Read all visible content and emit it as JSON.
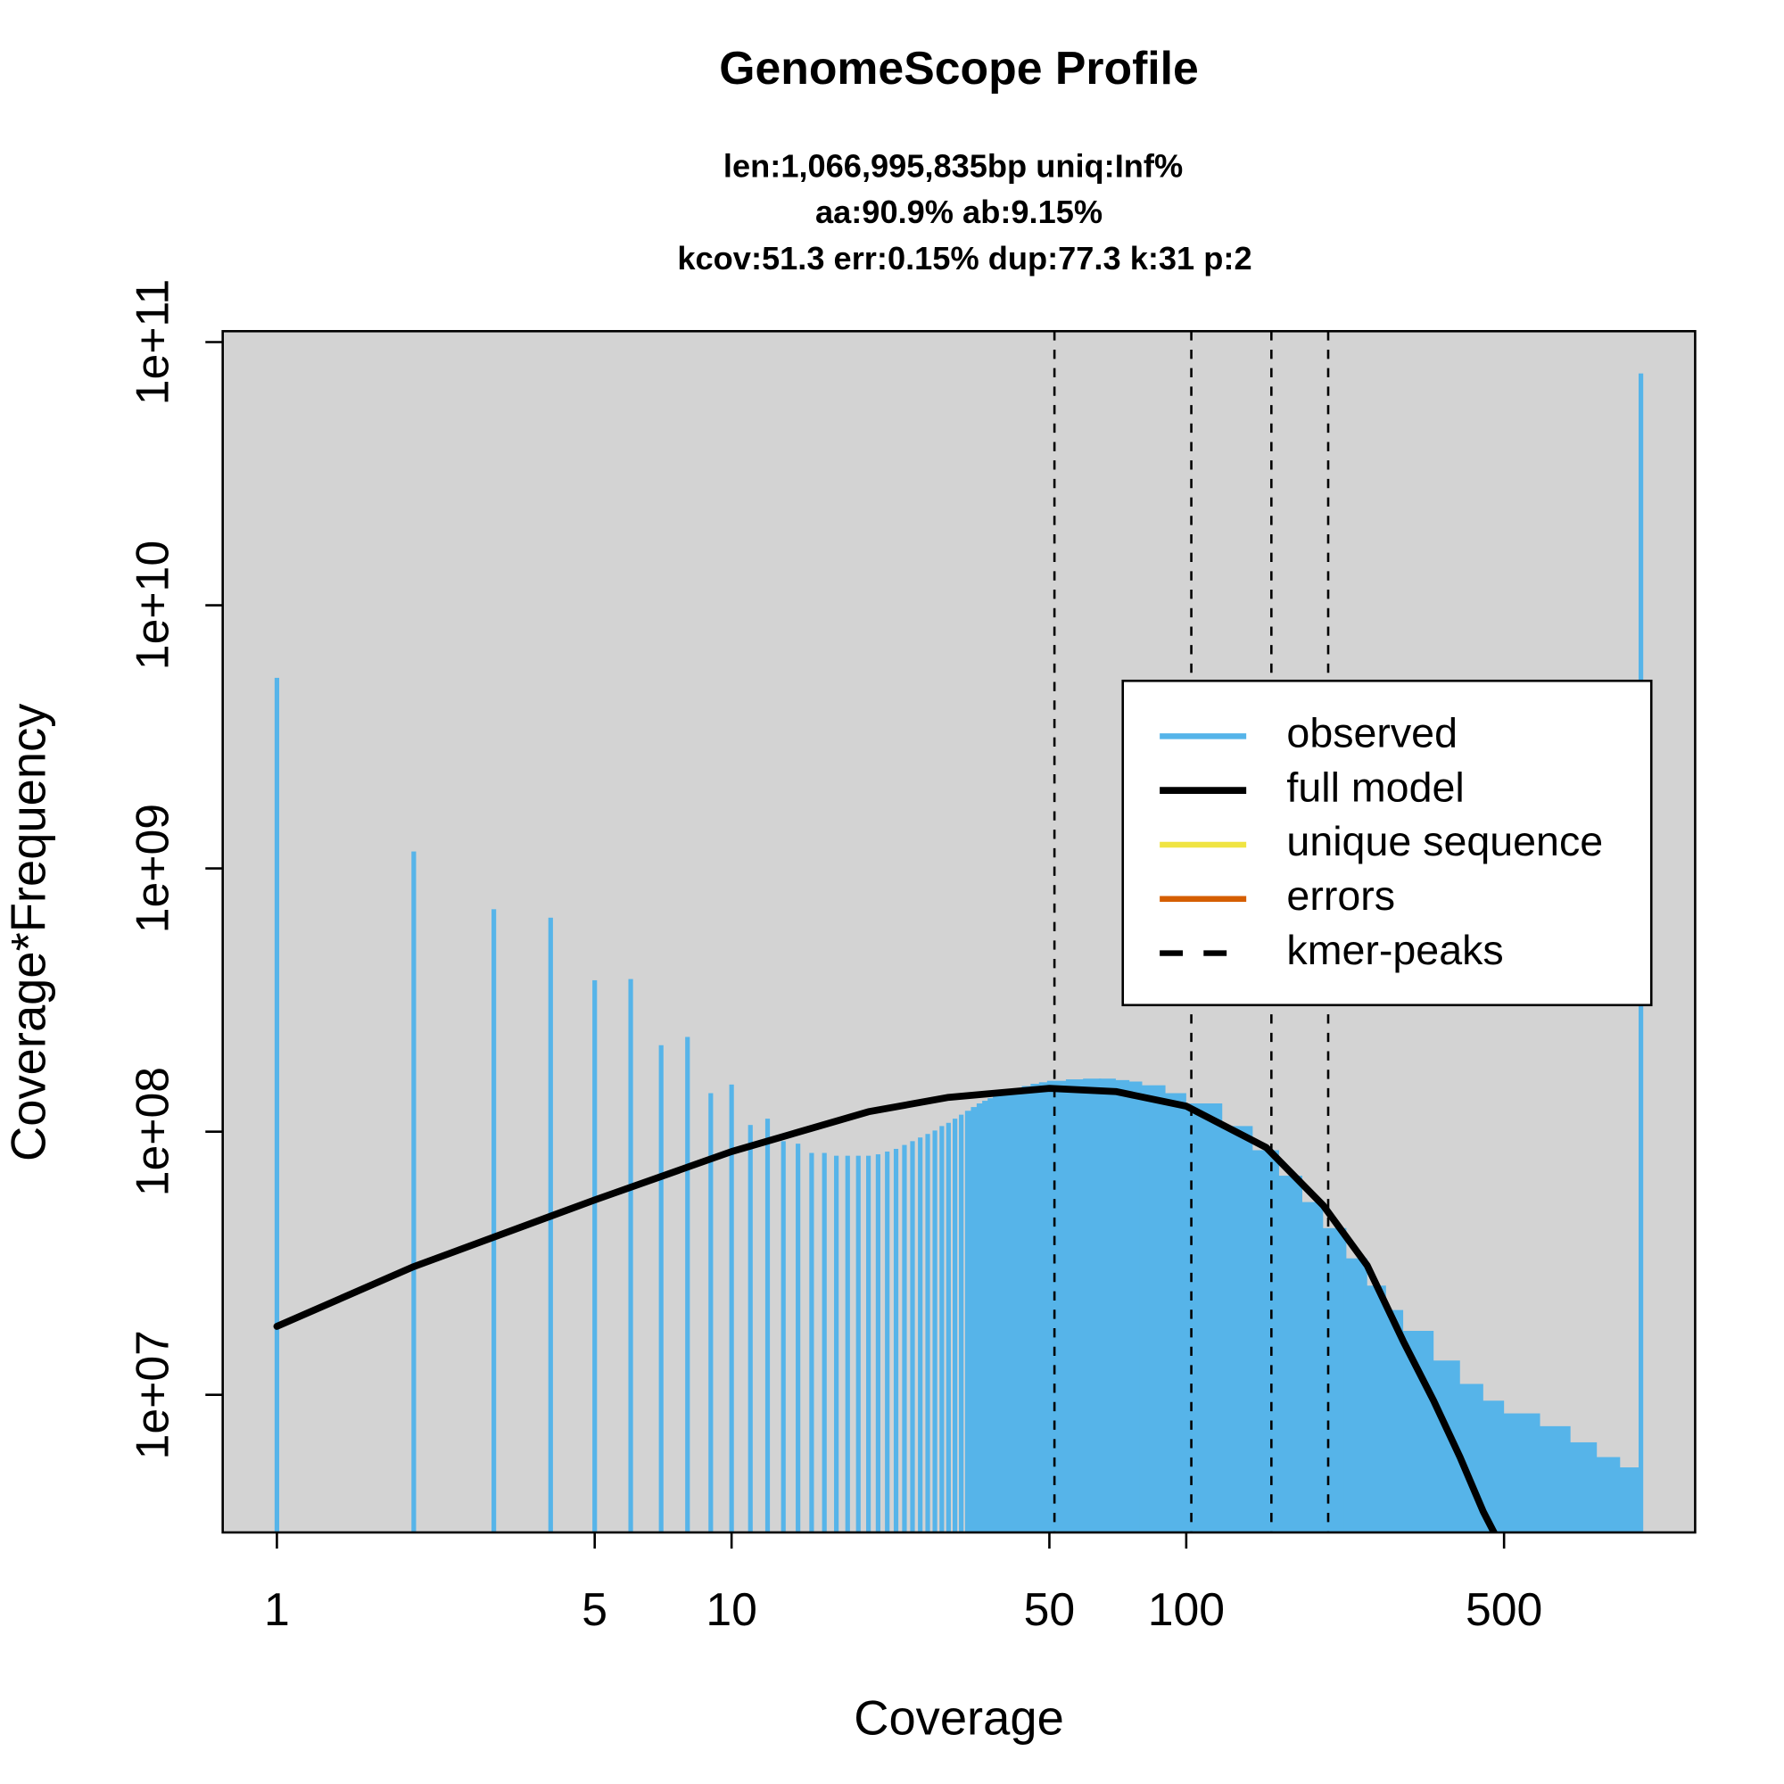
{
  "chart_data": {
    "type": "genomescope",
    "title": "GenomeScope Profile",
    "subtitle": [
      "len:1,066,995,835bp uniq:Inf%",
      "aa:90.9% ab:9.15%",
      "kcov:51.3 err:0.15%  dup:77.3  k:31 p:2"
    ],
    "xlabel": "Coverage",
    "ylabel": "Coverage*Frequency",
    "log_x": true,
    "log_y": true,
    "background": "#d3d3d3",
    "legend": "right",
    "xlim": [
      0.76,
      1316
    ],
    "ylim": [
      3000000,
      110000000000
    ],
    "xticks": [
      1,
      5,
      10,
      50,
      100,
      500
    ],
    "yticks": [
      {
        "value": 10000000,
        "label": "1e+07"
      },
      {
        "value": 100000000,
        "label": "1e+08"
      },
      {
        "value": 1000000000,
        "label": "1e+09"
      },
      {
        "value": 10000000000,
        "label": "1e+10"
      },
      {
        "value": 100000000000,
        "label": "1e+11"
      }
    ],
    "series": [
      {
        "name": "observed",
        "color": "#56B4E9",
        "type": "bar",
        "x": [
          1,
          2,
          3,
          4,
          5,
          6,
          7,
          8,
          9,
          10,
          11,
          12,
          13,
          14,
          15,
          16,
          17,
          18,
          19,
          20,
          21,
          22,
          23,
          24,
          25,
          26,
          27,
          28,
          29,
          30,
          31,
          32,
          33,
          34,
          35,
          36,
          37,
          38,
          39,
          40,
          42,
          44,
          46,
          48,
          50,
          55,
          60,
          65,
          70,
          75,
          80,
          90,
          100,
          120,
          140,
          160,
          180,
          200,
          225,
          250,
          275,
          300,
          350,
          400,
          450,
          500,
          600,
          700,
          800,
          900,
          990,
          1000
        ],
        "values": [
          5300000000,
          1160000000,
          700000000,
          650000000,
          376000000,
          380000000,
          213000000,
          229000000,
          140000000,
          151000000,
          106000000,
          112000000,
          92000000,
          90000000,
          83000000,
          83000000,
          81000000,
          81000000,
          81000000,
          81000000,
          82000000,
          84000000,
          86000000,
          89000000,
          92000000,
          95000000,
          98000000,
          101000000,
          105000000,
          108000000,
          112000000,
          116000000,
          120000000,
          124000000,
          128000000,
          131000000,
          134000000,
          137000000,
          140000000,
          142000000,
          146000000,
          149000000,
          152000000,
          154000000,
          156000000,
          158000000,
          159000000,
          159000000,
          157000000,
          155000000,
          150000000,
          140000000,
          128000000,
          105000000,
          85000000,
          68000000,
          54000000,
          43000000,
          33000000,
          26000000,
          21000000,
          17500000,
          13500000,
          11000000,
          9500000,
          8500000,
          7600000,
          6600000,
          5800000,
          5300000,
          4900000,
          76000000000
        ]
      },
      {
        "name": "full model",
        "color": "#000000",
        "type": "line",
        "x": [
          1,
          2,
          5,
          10,
          20,
          30,
          50,
          70,
          100,
          150,
          200,
          250,
          300,
          350,
          400,
          450,
          480
        ],
        "values": [
          18200000,
          30700000,
          55000000,
          84000000,
          119000000,
          135000000,
          146000000,
          142000000,
          125000000,
          87000000,
          52500000,
          31000000,
          16000000,
          9500000,
          5800000,
          3600000,
          2900000
        ]
      },
      {
        "name": "unique sequence",
        "color": "#F0E442",
        "type": "line"
      },
      {
        "name": "errors",
        "color": "#D55E00",
        "type": "line"
      },
      {
        "name": "kmer-peaks",
        "color": "#000000",
        "type": "vline",
        "dash": true,
        "x": [
          51.3,
          102.6,
          153.9,
          205.2
        ]
      }
    ]
  }
}
